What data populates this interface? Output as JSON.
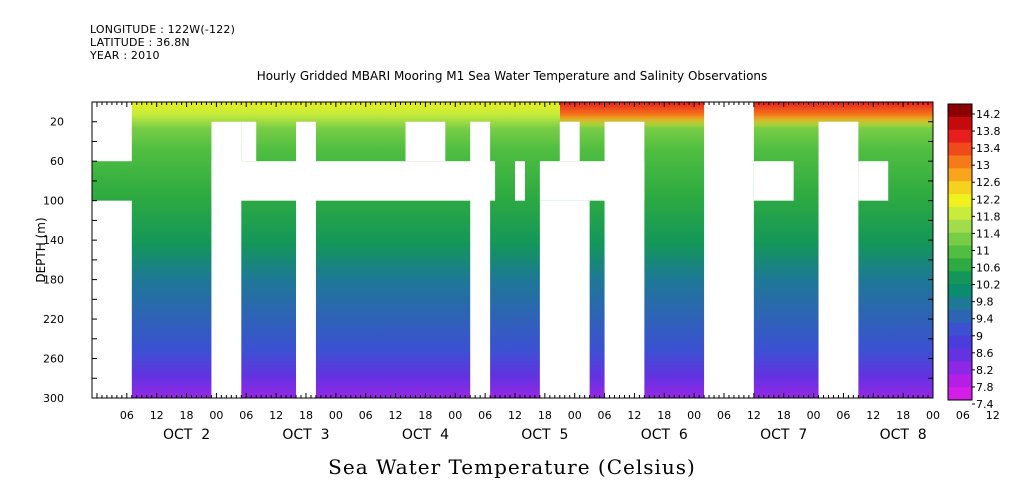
{
  "header": {
    "longitude": "LONGITUDE : 122W(-122)",
    "latitude": "LATITUDE : 36.8N",
    "year": "YEAR : 2010"
  },
  "chart_data": {
    "type": "heatmap",
    "title": "Hourly Gridded MBARI Mooring M1 Sea Water Temperature and Salinity Observations",
    "ylabel": "DEPTH (m)",
    "xlabel": "Sea Water Temperature (Celsius)",
    "x_range_hours": [
      -1,
      168
    ],
    "ylim": [
      0,
      300
    ],
    "y_ticks": [
      "20",
      "60",
      "100",
      "140",
      "180",
      "220",
      "260",
      "300"
    ],
    "x_hour_labels": [
      "06",
      "12",
      "18",
      "00",
      "06",
      "12",
      "18",
      "00",
      "06",
      "12",
      "18",
      "00",
      "06",
      "12",
      "18",
      "00",
      "06",
      "12",
      "18",
      "00",
      "06",
      "12",
      "18",
      "00",
      "06",
      "12",
      "18",
      "00",
      "06",
      "12",
      "18",
      "00"
    ],
    "x_day_labels": [
      "OCT  2",
      "OCT  3",
      "OCT  4",
      "OCT  5",
      "OCT  6",
      "OCT  7",
      "OCT  8"
    ],
    "colorbar": {
      "labels": [
        "14.2",
        "13.8",
        "13.4",
        "13",
        "12.6",
        "12.2",
        "11.8",
        "11.4",
        "11",
        "10.6",
        "10.2",
        "9.8",
        "9.4",
        "9",
        "8.6",
        "8.2",
        "7.8",
        "7.4"
      ],
      "colors": [
        "#8b0000",
        "#c40a0a",
        "#e61e1e",
        "#f04a1a",
        "#f57a1a",
        "#faa51e",
        "#f5d21e",
        "#f0f01e",
        "#c8eb3c",
        "#a0dc4b",
        "#78cd46",
        "#50be41",
        "#2daa41",
        "#14965a",
        "#0a8c6e",
        "#1e7896",
        "#2d64b4",
        "#3c50d2",
        "#4b3cdc",
        "#6432e1",
        "#8c28e6",
        "#b41ee6",
        "#d21ee6"
      ]
    },
    "temperature_profile": [
      {
        "depth": 5,
        "temp": 12.2
      },
      {
        "depth": 20,
        "temp": 11.8
      },
      {
        "depth": 35,
        "temp": 10.8
      },
      {
        "depth": 60,
        "temp": 10.1
      },
      {
        "depth": 100,
        "temp": 9.7
      },
      {
        "depth": 140,
        "temp": 9.4
      },
      {
        "depth": 180,
        "temp": 9.0
      },
      {
        "depth": 220,
        "temp": 8.7
      },
      {
        "depth": 260,
        "temp": 8.3
      },
      {
        "depth": 300,
        "temp": 7.8
      }
    ],
    "missing_data_regions": [
      {
        "t0": -1,
        "t1": 7,
        "d0": 0,
        "d1": 60
      },
      {
        "t0": -1,
        "t1": 7,
        "d0": 100,
        "d1": 300
      },
      {
        "t0": 23,
        "t1": 80,
        "d0": 60,
        "d1": 100
      },
      {
        "t0": 23,
        "t1": 29,
        "d0": 20,
        "d1": 300
      },
      {
        "t0": 29,
        "t1": 32,
        "d0": 20,
        "d1": 40
      },
      {
        "t0": 29,
        "t1": 32,
        "d0": 40,
        "d1": 60
      },
      {
        "t0": 40,
        "t1": 44,
        "d0": 20,
        "d1": 300
      },
      {
        "t0": 62,
        "t1": 70,
        "d0": 20,
        "d1": 60
      },
      {
        "t0": 75,
        "t1": 79,
        "d0": 20,
        "d1": 300
      },
      {
        "t0": 84,
        "t1": 86,
        "d0": 60,
        "d1": 100
      },
      {
        "t0": 89,
        "t1": 110,
        "d0": 60,
        "d1": 100
      },
      {
        "t0": 89,
        "t1": 99,
        "d0": 100,
        "d1": 300
      },
      {
        "t0": 93,
        "t1": 97,
        "d0": 20,
        "d1": 60
      },
      {
        "t0": 102,
        "t1": 110,
        "d0": 20,
        "d1": 300
      },
      {
        "t0": 122,
        "t1": 132,
        "d0": 0,
        "d1": 300
      },
      {
        "t0": 132,
        "t1": 140,
        "d0": 60,
        "d1": 100
      },
      {
        "t0": 145,
        "t1": 153,
        "d0": 20,
        "d1": 300
      },
      {
        "t0": 153,
        "t1": 159,
        "d0": 60,
        "d1": 100
      },
      {
        "t0": 173,
        "t1": 179,
        "d0": 60,
        "d1": 100
      },
      {
        "t0": 181,
        "t1": 186,
        "d0": 20,
        "d1": 300
      },
      {
        "t0": 186,
        "t1": 195,
        "d0": 60,
        "d1": 100
      },
      {
        "t0": 202,
        "t1": 212,
        "d0": 20,
        "d1": 300
      },
      {
        "t0": 212,
        "t1": 216,
        "d0": 0,
        "d1": 20
      },
      {
        "t0": 216,
        "t1": 217,
        "d0": 60,
        "d1": 100
      }
    ]
  }
}
